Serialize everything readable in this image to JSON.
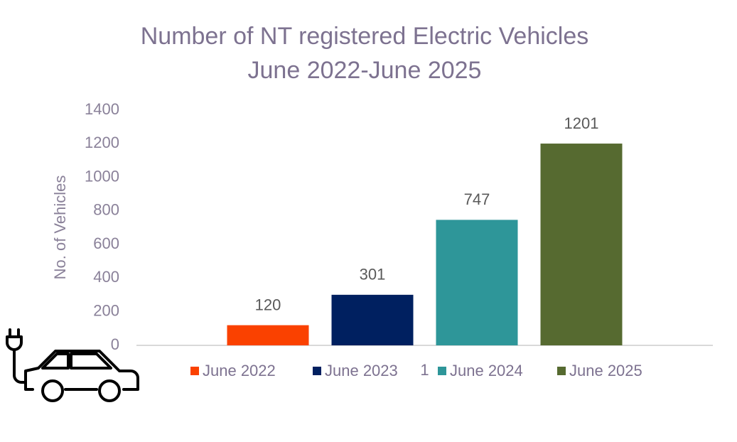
{
  "chart_data": {
    "type": "bar",
    "title": "Number of NT registered Electric Vehicles",
    "subtitle": "June 2022-June 2025",
    "y_label": "No. of Vehicles",
    "categories": [
      "1"
    ],
    "series": [
      {
        "name": "June 2022",
        "color": "#fa4100",
        "values": [
          120
        ]
      },
      {
        "name": "June 2023",
        "color": "#002060",
        "values": [
          301
        ]
      },
      {
        "name": "June 2024",
        "color": "#2e9699",
        "values": [
          747
        ]
      },
      {
        "name": "June 2025",
        "color": "#566a30",
        "values": [
          1201
        ]
      }
    ],
    "ylim": [
      0,
      1400
    ],
    "yticks": [
      0,
      200,
      400,
      600,
      800,
      1000,
      1200,
      1400
    ],
    "grid": false,
    "legend": "bottom"
  }
}
